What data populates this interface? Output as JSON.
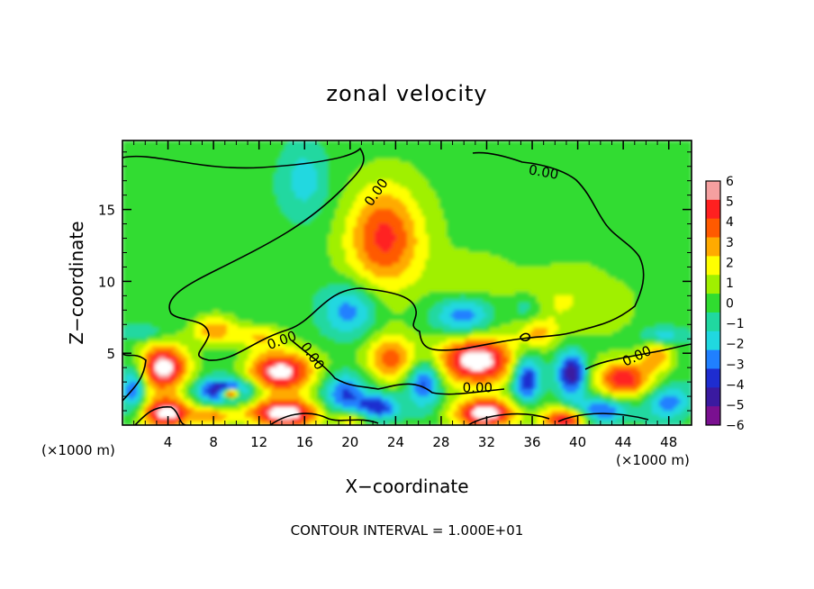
{
  "chart_data": {
    "type": "heatmap",
    "title": "zonal velocity",
    "xlabel": "X−coordinate",
    "ylabel": "Z−coordinate",
    "x_unit_left": "(×1000 m)",
    "x_unit_right": "(×1000 m)",
    "footer": "CONTOUR INTERVAL = 1.000E+01",
    "xlim": [
      0,
      50
    ],
    "ylim": [
      0,
      19.8
    ],
    "x_ticks": [
      4,
      8,
      12,
      16,
      20,
      24,
      28,
      32,
      36,
      40,
      44,
      48
    ],
    "y_ticks": [
      5,
      10,
      15
    ],
    "colorbar": {
      "levels": [
        6,
        5,
        4,
        3,
        2,
        1,
        0,
        -1,
        -2,
        -3,
        -4,
        -5,
        -6
      ],
      "label_texts": [
        "6",
        "5",
        "4",
        "3",
        "2",
        "1",
        "0",
        "−1",
        "−2",
        "−3",
        "−4",
        "−5",
        "−6"
      ],
      "colors": [
        "#f5a0a0",
        "#ff2020",
        "#ff5a00",
        "#ffaa00",
        "#ffff00",
        "#a0f000",
        "#30dc30",
        "#20d8a0",
        "#20d8e0",
        "#2080ff",
        "#1e2dd0",
        "#3a1aa0",
        "#7a1090"
      ]
    },
    "contour_labels": [
      {
        "text": "0.00",
        "x": 22.3,
        "z": 16.2,
        "rot": -55
      },
      {
        "text": "0.00",
        "x": 37.0,
        "z": 17.6,
        "rot": 10
      },
      {
        "text": "0.00",
        "x": 14.0,
        "z": 5.9,
        "rot": -20
      },
      {
        "text": "0.00",
        "x": 16.7,
        "z": 4.8,
        "rot": 55
      },
      {
        "text": "0.00",
        "x": 31.2,
        "z": 2.6,
        "rot": 0
      },
      {
        "text": "0.00",
        "x": 45.2,
        "z": 4.8,
        "rot": -25
      }
    ],
    "blobs": [
      {
        "x": 23.0,
        "z": 13.0,
        "rx": 3.3,
        "rz": 3.6,
        "v": 4.8
      },
      {
        "x": 16.0,
        "z": 17.0,
        "rx": 2.0,
        "rz": 2.5,
        "v": -2.0
      },
      {
        "x": 39.0,
        "z": 8.5,
        "rx": 6.0,
        "rz": 2.5,
        "v": 1.6
      },
      {
        "x": 30.0,
        "z": 10.0,
        "rx": 3.0,
        "rz": 2.0,
        "v": 1.0
      },
      {
        "x": 8.0,
        "z": 6.6,
        "rx": 2.0,
        "rz": 1.0,
        "v": 3.5
      },
      {
        "x": 12.0,
        "z": 6.2,
        "rx": 2.0,
        "rz": 0.8,
        "v": 2.6
      },
      {
        "x": 3.5,
        "z": 4.0,
        "rx": 2.3,
        "rz": 1.7,
        "v": 6.8
      },
      {
        "x": 14.0,
        "z": 3.7,
        "rx": 3.0,
        "rz": 1.5,
        "v": 6.5
      },
      {
        "x": 31.0,
        "z": 4.5,
        "rx": 3.4,
        "rz": 1.7,
        "v": 6.6
      },
      {
        "x": 44.0,
        "z": 3.2,
        "rx": 2.4,
        "rz": 1.3,
        "v": 5.6
      },
      {
        "x": 23.5,
        "z": 4.6,
        "rx": 2.2,
        "rz": 1.6,
        "v": 4.2
      },
      {
        "x": 36.5,
        "z": 6.3,
        "rx": 1.5,
        "rz": 0.9,
        "v": 2.2
      },
      {
        "x": 4.0,
        "z": 0.8,
        "rx": 2.3,
        "rz": 1.1,
        "v": 6.8
      },
      {
        "x": 14.0,
        "z": 0.8,
        "rx": 3.3,
        "rz": 1.0,
        "v": 6.8
      },
      {
        "x": 32.0,
        "z": 0.8,
        "rx": 2.6,
        "rz": 1.0,
        "v": 6.8
      },
      {
        "x": 39.0,
        "z": 0.4,
        "rx": 2.0,
        "rz": 0.8,
        "v": 6.0
      },
      {
        "x": 8.0,
        "z": 0.6,
        "rx": 1.6,
        "rz": 0.6,
        "v": 3.0
      },
      {
        "x": 20.0,
        "z": 0.4,
        "rx": 1.6,
        "rz": 0.6,
        "v": 3.0
      },
      {
        "x": 47.0,
        "z": 4.8,
        "rx": 1.5,
        "rz": 1.0,
        "v": 3.0
      },
      {
        "x": 20.0,
        "z": 8.0,
        "rx": 2.5,
        "rz": 1.8,
        "v": -3.0
      },
      {
        "x": 30.0,
        "z": 7.6,
        "rx": 2.5,
        "rz": 1.4,
        "v": -4.0
      },
      {
        "x": 35.5,
        "z": 8.2,
        "rx": 1.5,
        "rz": 1.0,
        "v": -2.0
      },
      {
        "x": 9.0,
        "z": 2.4,
        "rx": 2.5,
        "rz": 0.8,
        "v": -5.5
      },
      {
        "x": 9.5,
        "z": 2.2,
        "rx": 0.8,
        "rz": 0.35,
        "v": 9.0
      },
      {
        "x": 19.5,
        "z": 2.2,
        "rx": 2.0,
        "rz": 1.5,
        "v": -3.8
      },
      {
        "x": 26.5,
        "z": 3.0,
        "rx": 1.5,
        "rz": 1.6,
        "v": -4.5
      },
      {
        "x": 35.5,
        "z": 3.2,
        "rx": 1.2,
        "rz": 1.6,
        "v": -5.0
      },
      {
        "x": 39.5,
        "z": 3.6,
        "rx": 1.3,
        "rz": 1.5,
        "v": -5.6
      },
      {
        "x": 42.0,
        "z": 1.0,
        "rx": 2.5,
        "rz": 0.9,
        "v": -4.0
      },
      {
        "x": 48.0,
        "z": 1.6,
        "rx": 1.8,
        "rz": 1.1,
        "v": -3.0
      },
      {
        "x": 1.0,
        "z": 2.6,
        "rx": 1.0,
        "rz": 1.6,
        "v": -3.8
      },
      {
        "x": 22.5,
        "z": 1.2,
        "rx": 1.8,
        "rz": 0.9,
        "v": -4.5
      },
      {
        "x": 47.5,
        "z": 6.2,
        "rx": 2.0,
        "rz": 0.6,
        "v": -2.0
      },
      {
        "x": 2.0,
        "z": 6.4,
        "rx": 1.6,
        "rz": 0.5,
        "v": -1.5
      }
    ]
  }
}
